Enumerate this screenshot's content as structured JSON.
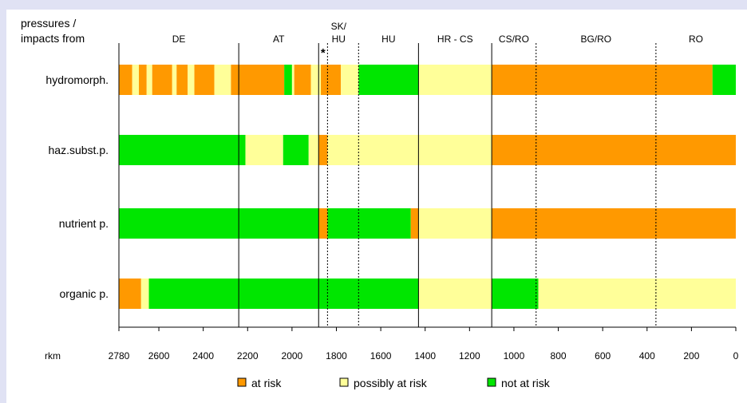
{
  "chart_data": {
    "type": "bar",
    "orientation": "horizontal-segmented",
    "corner_label": [
      "pressures /",
      "impacts from"
    ],
    "x_axis_label": "rkm",
    "x_ticks": [
      2780,
      2600,
      2400,
      2200,
      2000,
      1800,
      1600,
      1400,
      1200,
      1000,
      800,
      600,
      400,
      200,
      0
    ],
    "xlim": [
      2780,
      0
    ],
    "x_reversed": true,
    "grid": false,
    "legend_position": "bottom",
    "colors": {
      "at risk": "#ff9900",
      "possibly at risk": "#ffff99",
      "not at risk": "#00e600"
    },
    "legend": [
      {
        "key": "at risk",
        "label": "at risk"
      },
      {
        "key": "possibly at risk",
        "label": "possibly at risk"
      },
      {
        "key": "not at risk",
        "label": "not at risk"
      }
    ],
    "regions": [
      {
        "label": "DE",
        "from": 2780,
        "to": 2240
      },
      {
        "label": "AT",
        "from": 2240,
        "to": 1880
      },
      {
        "label": "SK/\nHU",
        "from": 1880,
        "to": 1700
      },
      {
        "label": "HU",
        "from": 1700,
        "to": 1430
      },
      {
        "label": "HR - CS",
        "from": 1430,
        "to": 1100
      },
      {
        "label": "CS/RO",
        "from": 1100,
        "to": 900
      },
      {
        "label": "BG/RO",
        "from": 900,
        "to": 360
      },
      {
        "label": "RO",
        "from": 360,
        "to": 0
      }
    ],
    "boundaries": [
      {
        "rkm": 2240,
        "style": "solid"
      },
      {
        "rkm": 1880,
        "style": "solid"
      },
      {
        "rkm": 1840,
        "style": "dotted"
      },
      {
        "rkm": 1700,
        "style": "dotted"
      },
      {
        "rkm": 1430,
        "style": "solid"
      },
      {
        "rkm": 1100,
        "style": "solid"
      },
      {
        "rkm": 900,
        "style": "dotted"
      },
      {
        "rkm": 360,
        "style": "dotted"
      }
    ],
    "asterisk": {
      "text": "*",
      "rkm": 1860
    },
    "series": [
      {
        "name": "hydromorph.",
        "segments": [
          {
            "from": 2780,
            "to": 2720,
            "status": "at risk"
          },
          {
            "from": 2720,
            "to": 2690,
            "status": "possibly at risk"
          },
          {
            "from": 2690,
            "to": 2655,
            "status": "at risk"
          },
          {
            "from": 2655,
            "to": 2630,
            "status": "possibly at risk"
          },
          {
            "from": 2630,
            "to": 2540,
            "status": "at risk"
          },
          {
            "from": 2540,
            "to": 2520,
            "status": "possibly at risk"
          },
          {
            "from": 2520,
            "to": 2470,
            "status": "at risk"
          },
          {
            "from": 2470,
            "to": 2440,
            "status": "possibly at risk"
          },
          {
            "from": 2440,
            "to": 2350,
            "status": "at risk"
          },
          {
            "from": 2350,
            "to": 2275,
            "status": "possibly at risk"
          },
          {
            "from": 2275,
            "to": 2035,
            "status": "at risk"
          },
          {
            "from": 2035,
            "to": 2000,
            "status": "not at risk"
          },
          {
            "from": 2000,
            "to": 1990,
            "status": "possibly at risk"
          },
          {
            "from": 1990,
            "to": 1915,
            "status": "at risk"
          },
          {
            "from": 1915,
            "to": 1870,
            "status": "possibly at risk"
          },
          {
            "from": 1870,
            "to": 1780,
            "status": "at risk"
          },
          {
            "from": 1780,
            "to": 1700,
            "status": "possibly at risk"
          },
          {
            "from": 1700,
            "to": 1430,
            "status": "not at risk"
          },
          {
            "from": 1430,
            "to": 1100,
            "status": "possibly at risk"
          },
          {
            "from": 1100,
            "to": 105,
            "status": "at risk"
          },
          {
            "from": 105,
            "to": 0,
            "status": "not at risk"
          }
        ]
      },
      {
        "name": "haz.subst.p.",
        "segments": [
          {
            "from": 2780,
            "to": 2210,
            "status": "not at risk"
          },
          {
            "from": 2210,
            "to": 2040,
            "status": "possibly at risk"
          },
          {
            "from": 2040,
            "to": 1925,
            "status": "not at risk"
          },
          {
            "from": 1925,
            "to": 1880,
            "status": "possibly at risk"
          },
          {
            "from": 1880,
            "to": 1840,
            "status": "at risk"
          },
          {
            "from": 1840,
            "to": 1100,
            "status": "possibly at risk"
          },
          {
            "from": 1100,
            "to": 0,
            "status": "at risk"
          }
        ]
      },
      {
        "name": "nutrient p.",
        "segments": [
          {
            "from": 2780,
            "to": 1880,
            "status": "not at risk"
          },
          {
            "from": 1880,
            "to": 1840,
            "status": "at risk"
          },
          {
            "from": 1840,
            "to": 1465,
            "status": "not at risk"
          },
          {
            "from": 1465,
            "to": 1430,
            "status": "at risk"
          },
          {
            "from": 1430,
            "to": 1100,
            "status": "possibly at risk"
          },
          {
            "from": 1100,
            "to": 0,
            "status": "at risk"
          }
        ]
      },
      {
        "name": "organic p.",
        "segments": [
          {
            "from": 2780,
            "to": 2680,
            "status": "at risk"
          },
          {
            "from": 2680,
            "to": 2645,
            "status": "possibly at risk"
          },
          {
            "from": 2645,
            "to": 1430,
            "status": "not at risk"
          },
          {
            "from": 1430,
            "to": 1100,
            "status": "possibly at risk"
          },
          {
            "from": 1100,
            "to": 890,
            "status": "not at risk"
          },
          {
            "from": 890,
            "to": 0,
            "status": "possibly at risk"
          }
        ]
      }
    ]
  }
}
